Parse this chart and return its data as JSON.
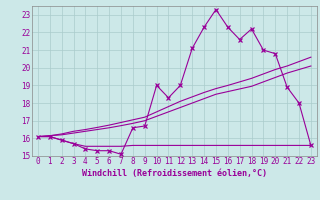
{
  "xlabel": "Windchill (Refroidissement éolien,°C)",
  "x_values": [
    0,
    1,
    2,
    3,
    4,
    5,
    6,
    7,
    8,
    9,
    10,
    11,
    12,
    13,
    14,
    15,
    16,
    17,
    18,
    19,
    20,
    21,
    22,
    23
  ],
  "line1_y": [
    16.1,
    16.1,
    15.9,
    15.7,
    15.4,
    15.3,
    15.3,
    15.1,
    16.6,
    16.7,
    19.0,
    18.3,
    19.0,
    21.1,
    22.3,
    23.3,
    22.3,
    21.6,
    22.2,
    21.0,
    20.8,
    18.9,
    18.0,
    15.6
  ],
  "line2_y": [
    16.1,
    16.1,
    15.9,
    15.7,
    15.55,
    15.55,
    15.55,
    15.55,
    15.6,
    15.6,
    15.6,
    15.6,
    15.6,
    15.6,
    15.6,
    15.6,
    15.6,
    15.6,
    15.6,
    15.6,
    15.6,
    15.6,
    15.6,
    15.6
  ],
  "line3_y": [
    16.1,
    16.15,
    16.2,
    16.3,
    16.4,
    16.5,
    16.6,
    16.72,
    16.85,
    17.0,
    17.25,
    17.5,
    17.75,
    18.0,
    18.25,
    18.5,
    18.65,
    18.8,
    18.95,
    19.2,
    19.45,
    19.7,
    19.9,
    20.1
  ],
  "line4_y": [
    16.1,
    16.15,
    16.25,
    16.4,
    16.5,
    16.62,
    16.75,
    16.9,
    17.05,
    17.2,
    17.5,
    17.8,
    18.1,
    18.35,
    18.6,
    18.82,
    19.0,
    19.2,
    19.4,
    19.65,
    19.9,
    20.1,
    20.35,
    20.6
  ],
  "line_color": "#990099",
  "bg_color": "#cce8e8",
  "grid_color": "#aacccc",
  "spine_color": "#888888",
  "ylim": [
    15.0,
    23.5
  ],
  "xlim": [
    -0.5,
    23.5
  ],
  "yticks": [
    15,
    16,
    17,
    18,
    19,
    20,
    21,
    22,
    23
  ],
  "xticks": [
    0,
    1,
    2,
    3,
    4,
    5,
    6,
    7,
    8,
    9,
    10,
    11,
    12,
    13,
    14,
    15,
    16,
    17,
    18,
    19,
    20,
    21,
    22,
    23
  ],
  "tick_fontsize": 5.5,
  "xlabel_fontsize": 6.0
}
